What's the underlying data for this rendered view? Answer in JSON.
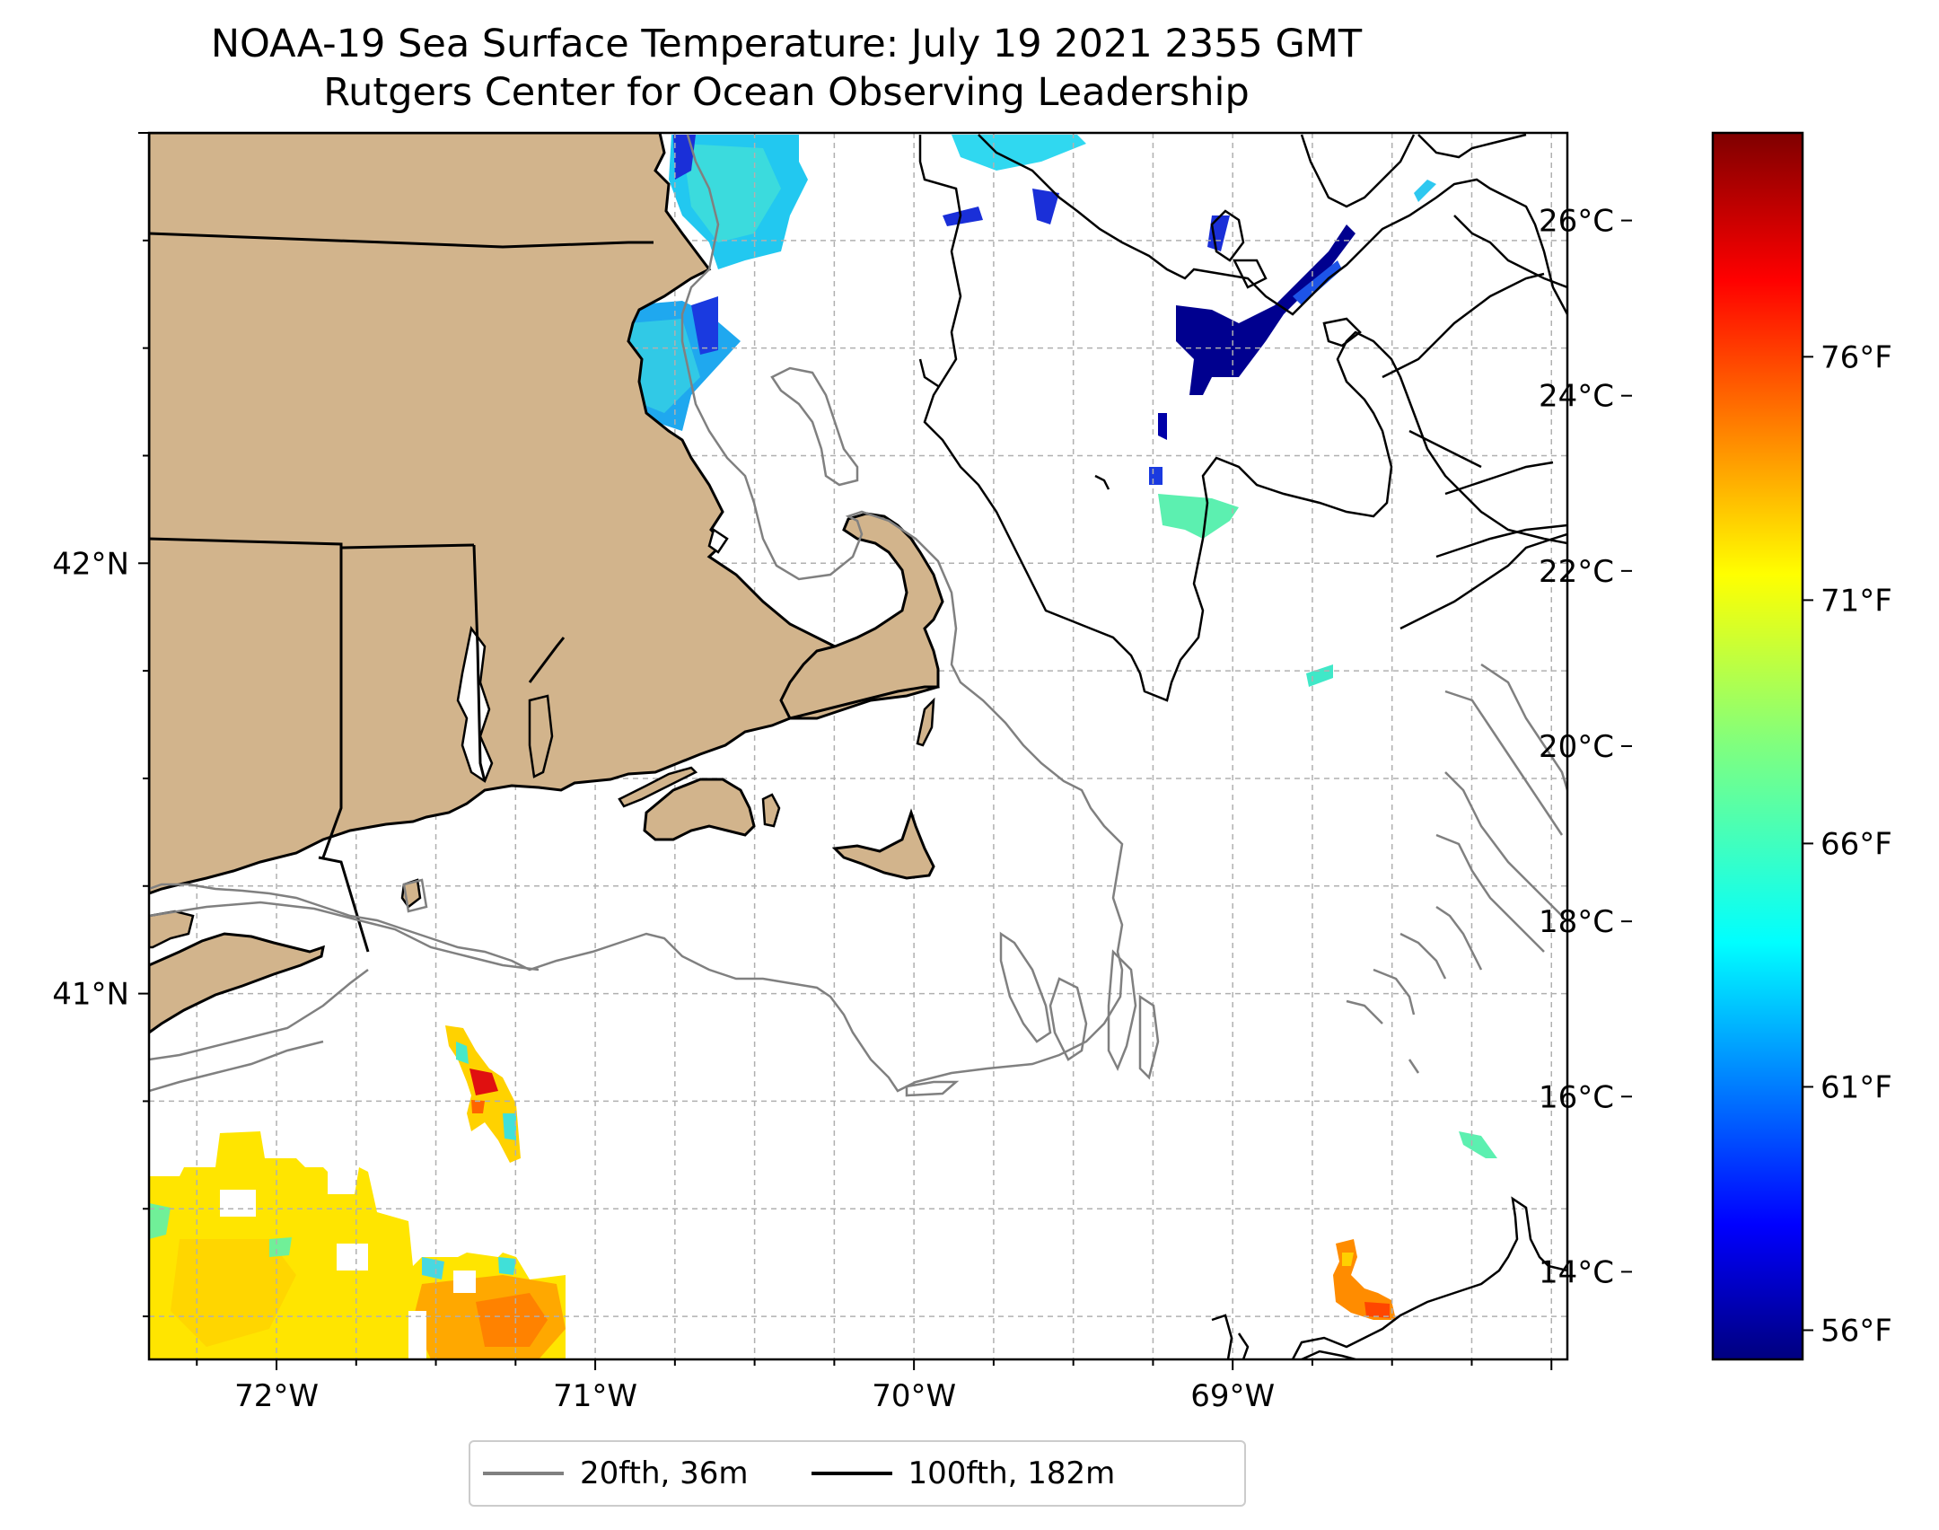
{
  "title": {
    "line1": "NOAA-19 Sea Surface Temperature: July 19 2021 2355 GMT",
    "line2": "Rutgers Center for Ocean Observing Leadership"
  },
  "map": {
    "lon_range": [
      -72.4,
      -67.95
    ],
    "lat_range": [
      40.15,
      43.0
    ],
    "lon_ticks": [
      {
        "value": -72,
        "label": "72°W"
      },
      {
        "value": -71,
        "label": "71°W"
      },
      {
        "value": -70,
        "label": "70°W"
      },
      {
        "value": -69,
        "label": "69°W"
      }
    ],
    "lat_ticks": [
      {
        "value": 41,
        "label": "41°N"
      },
      {
        "value": 42,
        "label": "42°N"
      }
    ],
    "grid": true,
    "colors": {
      "land": "#d2b48c",
      "coast": "#000000",
      "contour_20fth": "#808080",
      "contour_100fth": "#000000",
      "grid": "#b0b0b0"
    }
  },
  "legend": {
    "items": [
      {
        "label": "20fth, 36m",
        "color": "#808080"
      },
      {
        "label": "100fth, 182m",
        "color": "#000000"
      }
    ],
    "placement": "bottom-center"
  },
  "colorbar": {
    "colormap": "jet",
    "range_c": [
      13.0,
      27.0
    ],
    "celsius_ticks": [
      {
        "value": 14,
        "label": "14°C"
      },
      {
        "value": 16,
        "label": "16°C"
      },
      {
        "value": 18,
        "label": "18°C"
      },
      {
        "value": 20,
        "label": "20°C"
      },
      {
        "value": 22,
        "label": "22°C"
      },
      {
        "value": 24,
        "label": "24°C"
      },
      {
        "value": 26,
        "label": "26°C"
      }
    ],
    "fahrenheit_ticks": [
      {
        "value": 56,
        "label": "56°F"
      },
      {
        "value": 61,
        "label": "61°F"
      },
      {
        "value": 66,
        "label": "66°F"
      },
      {
        "value": 71,
        "label": "71°F"
      },
      {
        "value": 76,
        "label": "76°F"
      }
    ]
  }
}
